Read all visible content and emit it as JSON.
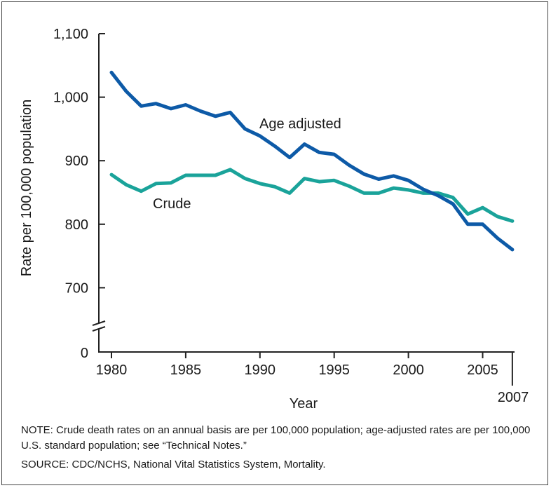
{
  "chart_data": {
    "type": "line",
    "xlabel": "Year",
    "ylabel": "Rate per 100,000 population",
    "x": [
      1980,
      1981,
      1982,
      1983,
      1984,
      1985,
      1986,
      1987,
      1988,
      1989,
      1990,
      1991,
      1992,
      1993,
      1994,
      1995,
      1996,
      1997,
      1998,
      1999,
      2000,
      2001,
      2002,
      2003,
      2004,
      2005,
      2006,
      2007
    ],
    "series": [
      {
        "name": "Age adjusted",
        "color": "#0d5aa7",
        "values": [
          1039,
          1009,
          986,
          990,
          982,
          988,
          978,
          970,
          976,
          950,
          939,
          923,
          905,
          926,
          913,
          910,
          893,
          879,
          871,
          876,
          869,
          855,
          845,
          832,
          800,
          800,
          778,
          760
        ]
      },
      {
        "name": "Crude",
        "color": "#1aa39a",
        "values": [
          878,
          862,
          852,
          864,
          865,
          877,
          877,
          877,
          886,
          872,
          864,
          859,
          849,
          872,
          867,
          869,
          860,
          849,
          849,
          857,
          854,
          849,
          849,
          842,
          816,
          826,
          812,
          805
        ]
      }
    ],
    "ylim": [
      690,
      1100
    ],
    "yticks": [
      "1,100",
      "1,000",
      "900",
      "800",
      "700"
    ],
    "ytick_values": [
      1100,
      1000,
      900,
      800,
      700
    ],
    "y_zero_label": "0",
    "y_axis_break": true,
    "xticks": [
      "1980",
      "1985",
      "1990",
      "1995",
      "2000",
      "2005"
    ],
    "xtick_values": [
      1980,
      1985,
      1990,
      1995,
      2000,
      2005
    ],
    "x_end_label": "2007",
    "grid": false
  },
  "notes": {
    "note": "NOTE: Crude death rates on an annual basis are per 100,000 population; age-adjusted rates are per 100,000 U.S. standard population; see “Technical Notes.”",
    "source": "SOURCE: CDC/NCHS, National Vital Statistics System, Mortality."
  }
}
